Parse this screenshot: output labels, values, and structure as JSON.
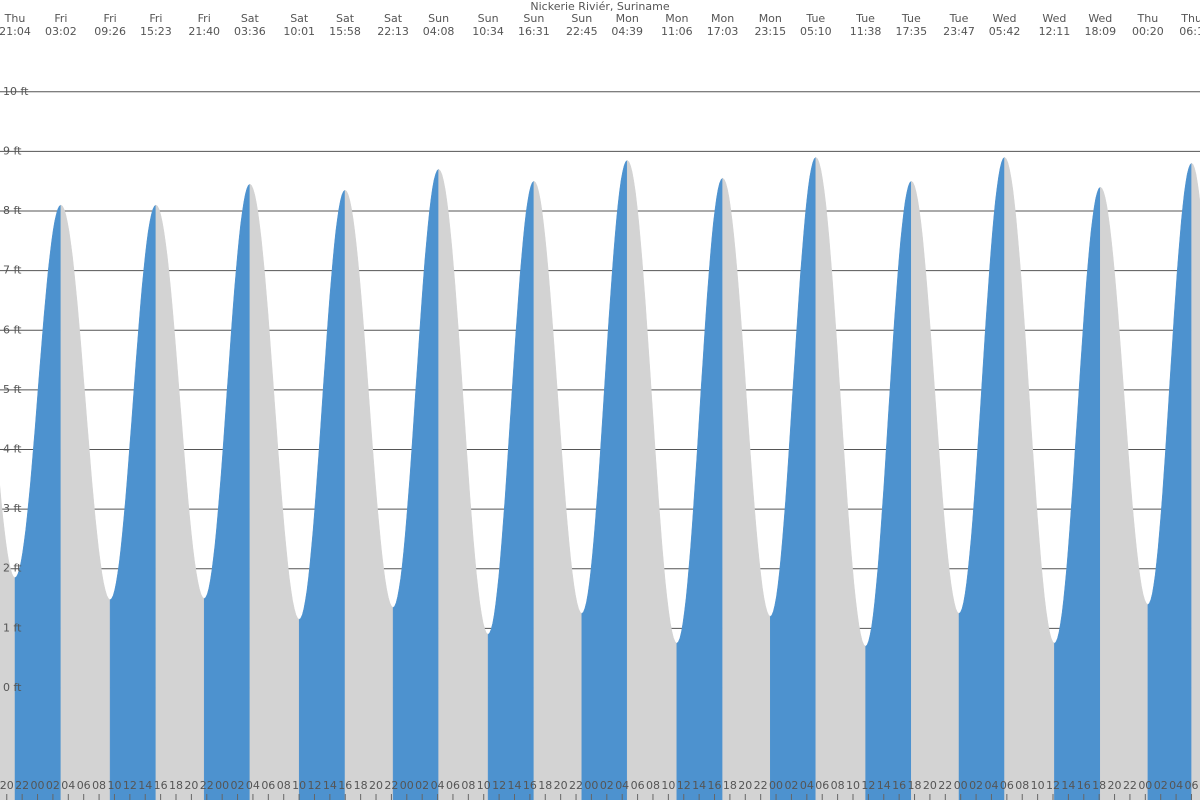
{
  "chart_data": {
    "type": "tide",
    "title": "Nickerie Riviér, Suriname",
    "days": [
      "Thu",
      "Fri",
      "Fri",
      "Fri",
      "Fri",
      "Sat",
      "Sat",
      "Sat",
      "Sat",
      "Sun",
      "Sun",
      "Sun",
      "Sun",
      "Mon",
      "Mon",
      "Mon",
      "Mon",
      "Tue",
      "Tue",
      "Tue",
      "Tue",
      "Wed",
      "Wed",
      "Wed",
      "Thu",
      "Thu"
    ],
    "times": [
      "21:04",
      "03:02",
      "09:26",
      "15:23",
      "21:40",
      "03:36",
      "10:01",
      "15:58",
      "22:13",
      "04:08",
      "10:34",
      "16:31",
      "22:45",
      "04:39",
      "11:06",
      "17:03",
      "23:15",
      "05:10",
      "11:38",
      "17:35",
      "23:47",
      "05:42",
      "12:11",
      "18:09",
      "00:20",
      "06:1"
    ],
    "values": [
      1.85,
      8.1,
      1.48,
      8.1,
      1.5,
      8.45,
      1.15,
      8.35,
      1.35,
      8.7,
      0.9,
      8.5,
      1.25,
      8.85,
      0.75,
      8.55,
      1.2,
      8.9,
      0.7,
      8.5,
      1.25,
      8.9,
      0.75,
      8.4,
      1.4,
      8.8
    ],
    "hour_labels": [
      "20",
      "22",
      "00",
      "02",
      "04",
      "06",
      "08",
      "10",
      "12",
      "14",
      "16",
      "18",
      "20",
      "22",
      "00",
      "02",
      "04",
      "06",
      "08",
      "10",
      "12",
      "14",
      "16",
      "18",
      "20",
      "22",
      "00",
      "02",
      "04",
      "06",
      "08",
      "10",
      "12",
      "14",
      "16",
      "18",
      "20",
      "22",
      "00",
      "02",
      "04",
      "06",
      "08",
      "10",
      "12",
      "14",
      "16",
      "18",
      "20",
      "22",
      "00",
      "02",
      "04",
      "06",
      "08",
      "10",
      "12",
      "14",
      "16",
      "18",
      "20",
      "22",
      "00",
      "02",
      "04",
      "06",
      "08",
      "10",
      "12",
      "14",
      "16",
      "18",
      "20",
      "22",
      "00",
      "02",
      "04",
      "06"
    ],
    "ylim": [
      -1.88,
      11.54
    ],
    "yticks": [
      {
        "value": 0,
        "label": "0 ft"
      },
      {
        "value": 1,
        "label": "1 ft"
      },
      {
        "value": 2,
        "label": "2 ft"
      },
      {
        "value": 3,
        "label": "3 ft"
      },
      {
        "value": 4,
        "label": "4 ft"
      },
      {
        "value": 5,
        "label": "5 ft"
      },
      {
        "value": 6,
        "label": "6 ft"
      },
      {
        "value": 7,
        "label": "7 ft"
      },
      {
        "value": 8,
        "label": "8 ft"
      },
      {
        "value": 9,
        "label": "9 ft"
      },
      {
        "value": 10,
        "label": "10 ft"
      }
    ],
    "grid": true,
    "rising_color": "#4d92cf",
    "falling_color": "#d3d3d3"
  }
}
